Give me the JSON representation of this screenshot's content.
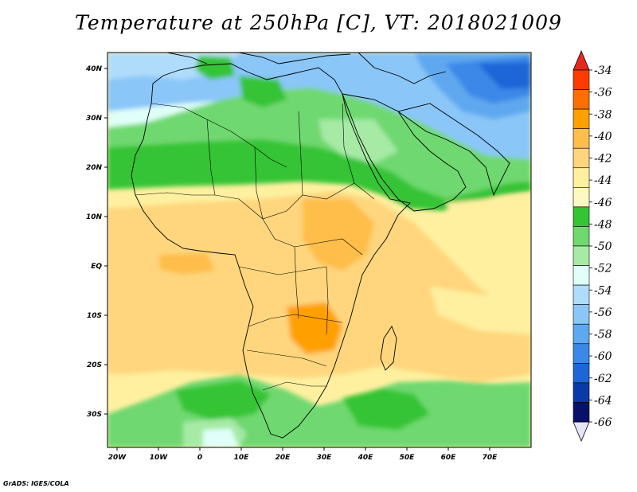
{
  "title": "Temperature at 250hPa [C], VT: 2018021009",
  "credit": "GrADS: IGES/COLA",
  "map": {
    "lat_labels": [
      "40N",
      "30N",
      "20N",
      "10N",
      "EQ",
      "10S",
      "20S",
      "30S"
    ],
    "lon_labels": [
      "20W",
      "10W",
      "0",
      "10E",
      "20E",
      "30E",
      "40E",
      "50E",
      "60E",
      "70E"
    ]
  },
  "colorbar": {
    "labels": [
      "-34",
      "-36",
      "-38",
      "-40",
      "-42",
      "-44",
      "-46",
      "-48",
      "-50",
      "-52",
      "-54",
      "-56",
      "-58",
      "-60",
      "-62",
      "-64",
      "-66"
    ],
    "colors": [
      "#ff3c00",
      "#ff6e00",
      "#ffa000",
      "#ffbe4a",
      "#ffd67d",
      "#fff0a0",
      "#fff8c0",
      "#34c434",
      "#6fd86f",
      "#a6eaa6",
      "#e0fff8",
      "#b0dcfc",
      "#8ac6f8",
      "#5ea8f0",
      "#3a88e8",
      "#1e66d8",
      "#0a3aa8",
      "#08106a"
    ],
    "top_arrow_color": "#e8281e",
    "bottom_arrow_color": "#e6e6fa"
  }
}
